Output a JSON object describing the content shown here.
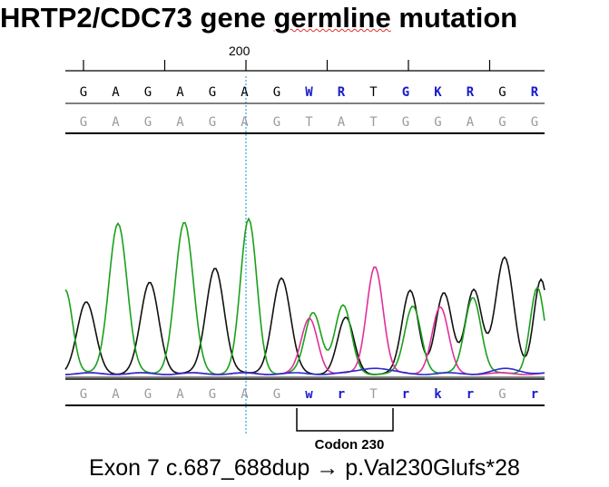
{
  "title": {
    "prefix": "HRTP2/CDC73",
    "gene": "gene",
    "emphasis": "germline",
    "suffix": "mutation"
  },
  "scale": {
    "tick_label": "200"
  },
  "colors": {
    "ambiguous": "#1a1acc",
    "reference": "#9a9a9a",
    "green_trace": "#1aa01a",
    "black_trace": "#111111",
    "pink_trace": "#e0309a",
    "blue_trace": "#2a2ad0",
    "cursor": "#3ab0e0"
  },
  "sequence_top": [
    {
      "b": "G",
      "c": "normal"
    },
    {
      "b": "A",
      "c": "normal"
    },
    {
      "b": "G",
      "c": "normal"
    },
    {
      "b": "A",
      "c": "normal"
    },
    {
      "b": "G",
      "c": "normal"
    },
    {
      "b": "A",
      "c": "normal"
    },
    {
      "b": "G",
      "c": "normal"
    },
    {
      "b": "W",
      "c": "ambiguous"
    },
    {
      "b": "R",
      "c": "ambiguous"
    },
    {
      "b": "T",
      "c": "normal"
    },
    {
      "b": "G",
      "c": "ambiguous"
    },
    {
      "b": "K",
      "c": "ambiguous"
    },
    {
      "b": "R",
      "c": "ambiguous"
    },
    {
      "b": "G",
      "c": "normal"
    },
    {
      "b": "R",
      "c": "ambiguous"
    }
  ],
  "sequence_reference": [
    "G",
    "A",
    "G",
    "A",
    "G",
    "A",
    "G",
    "T",
    "A",
    "T",
    "G",
    "G",
    "A",
    "G",
    "G"
  ],
  "sequence_bottom": [
    {
      "b": "G",
      "c": "reference"
    },
    {
      "b": "A",
      "c": "reference"
    },
    {
      "b": "G",
      "c": "reference"
    },
    {
      "b": "A",
      "c": "reference"
    },
    {
      "b": "G",
      "c": "reference"
    },
    {
      "b": "A",
      "c": "reference"
    },
    {
      "b": "G",
      "c": "reference"
    },
    {
      "b": "w",
      "c": "ambiguous"
    },
    {
      "b": "r",
      "c": "ambiguous"
    },
    {
      "b": "T",
      "c": "reference"
    },
    {
      "b": "r",
      "c": "ambiguous"
    },
    {
      "b": "k",
      "c": "ambiguous"
    },
    {
      "b": "r",
      "c": "ambiguous"
    },
    {
      "b": "G",
      "c": "reference"
    },
    {
      "b": "r",
      "c": "ambiguous"
    }
  ],
  "codon_label": "Codon 230",
  "footer_text": "Exon 7 c.687_688dup → p.Val230Glufs*28"
}
